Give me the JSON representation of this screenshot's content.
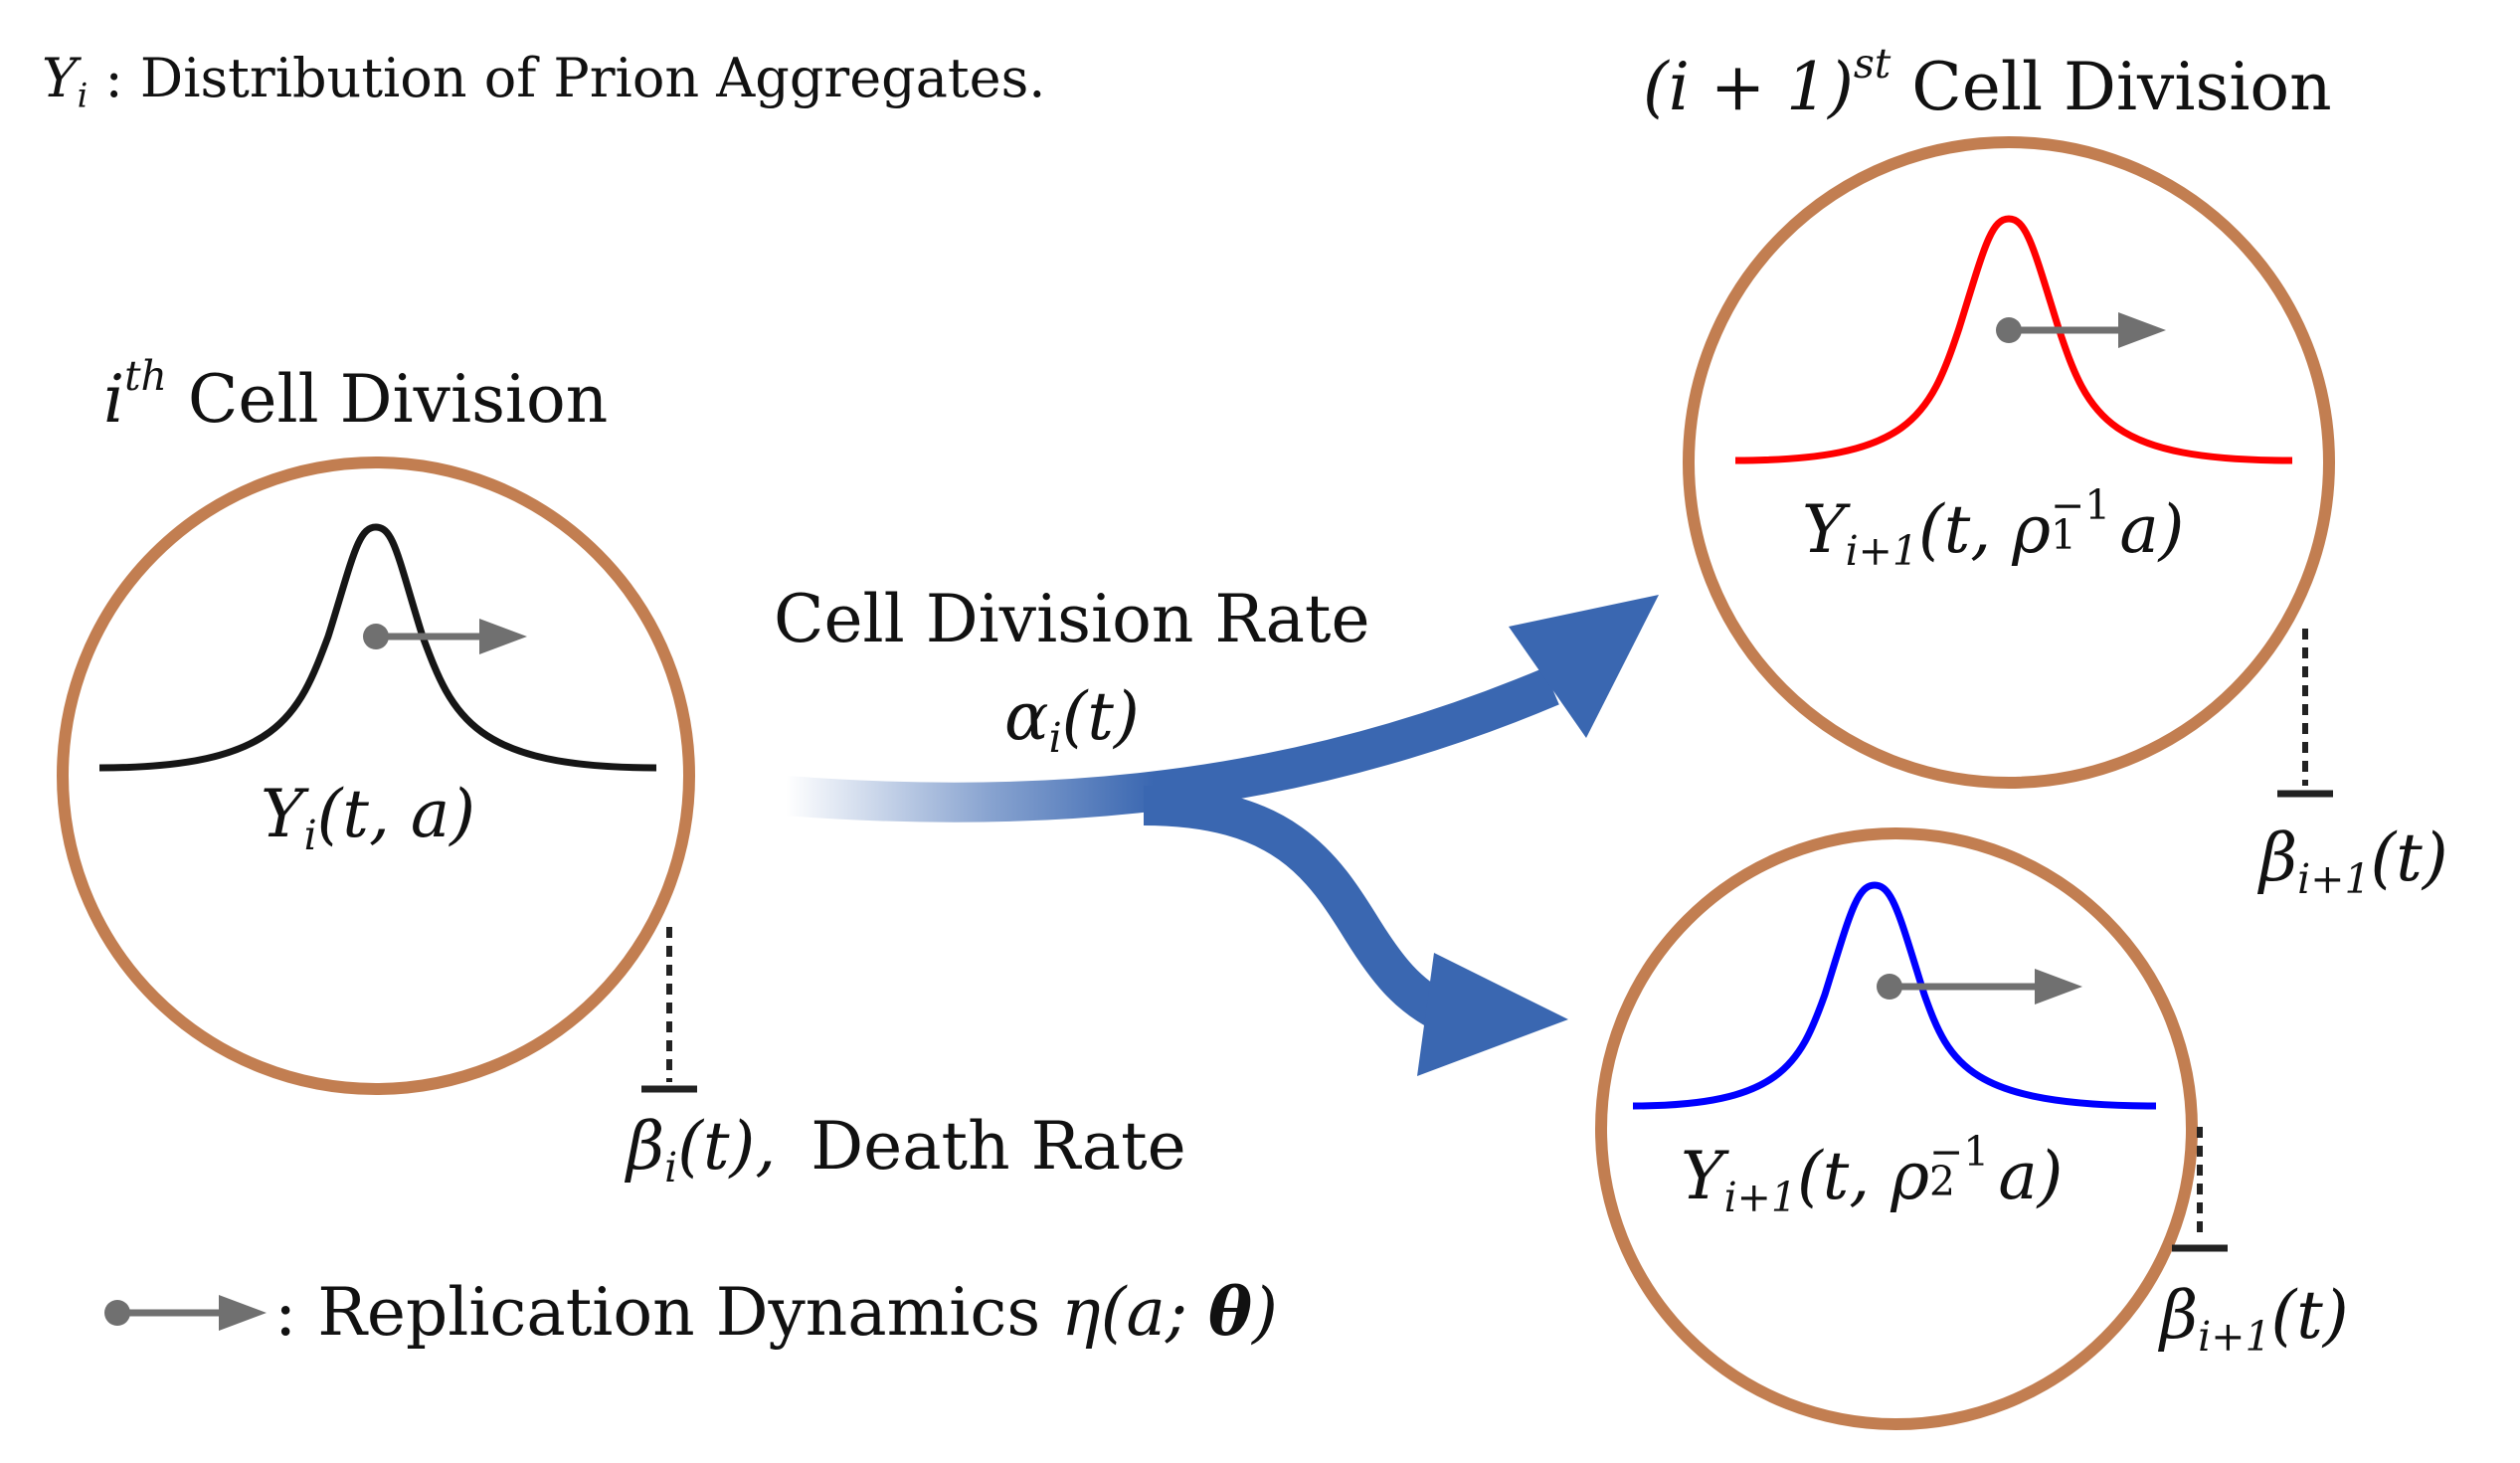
{
  "colors": {
    "membrane": "#c27e51",
    "curve_parent": "#161616",
    "curve_daughter_1": "#ff0000",
    "curve_daughter_2": "#0000ff",
    "flow_arrow": "#3a67b1",
    "replication_arrow": "#707070",
    "inhibition_line": "#222222"
  },
  "top_legend": {
    "symbol": "Y",
    "subscript": "i",
    "text": ": Distribution of Prion Aggregates."
  },
  "parent_cell": {
    "title_index": "i",
    "title_superscript": "th",
    "title_text": "Cell Division",
    "distribution_symbol": "Y",
    "distribution_subscript": "i",
    "distribution_args": "(t, a)"
  },
  "division_rate": {
    "label": "Cell Division Rate",
    "symbol": "α",
    "subscript": "i",
    "args": "(t)"
  },
  "death_rate": {
    "symbol": "β",
    "subscript": "i",
    "args": "(t),",
    "label": "Death Rate"
  },
  "daughter_division": {
    "title_math": "(i + 1)",
    "title_superscript": "st",
    "title_text": "Cell Division"
  },
  "daughter_1": {
    "distribution_symbol": "Y",
    "distribution_subscript": "i+1",
    "args_open": "(t, ",
    "rho": "ρ",
    "rho_sub": "1",
    "rho_sup": "−1",
    "args_close": "a)",
    "death_symbol": "β",
    "death_subscript": "i+1",
    "death_args": "(t)"
  },
  "daughter_2": {
    "distribution_symbol": "Y",
    "distribution_subscript": "i+1",
    "args_open": "(t, ",
    "rho": "ρ",
    "rho_sub": "2",
    "rho_sup": "−1",
    "args_close": "a)",
    "death_symbol": "β",
    "death_subscript": "i+1",
    "death_args": "(t)"
  },
  "bottom_legend": {
    "text": ": Replication Dynamics",
    "symbol": "η",
    "args_open": "(a; ",
    "theta": "θ",
    "args_close": ")"
  }
}
